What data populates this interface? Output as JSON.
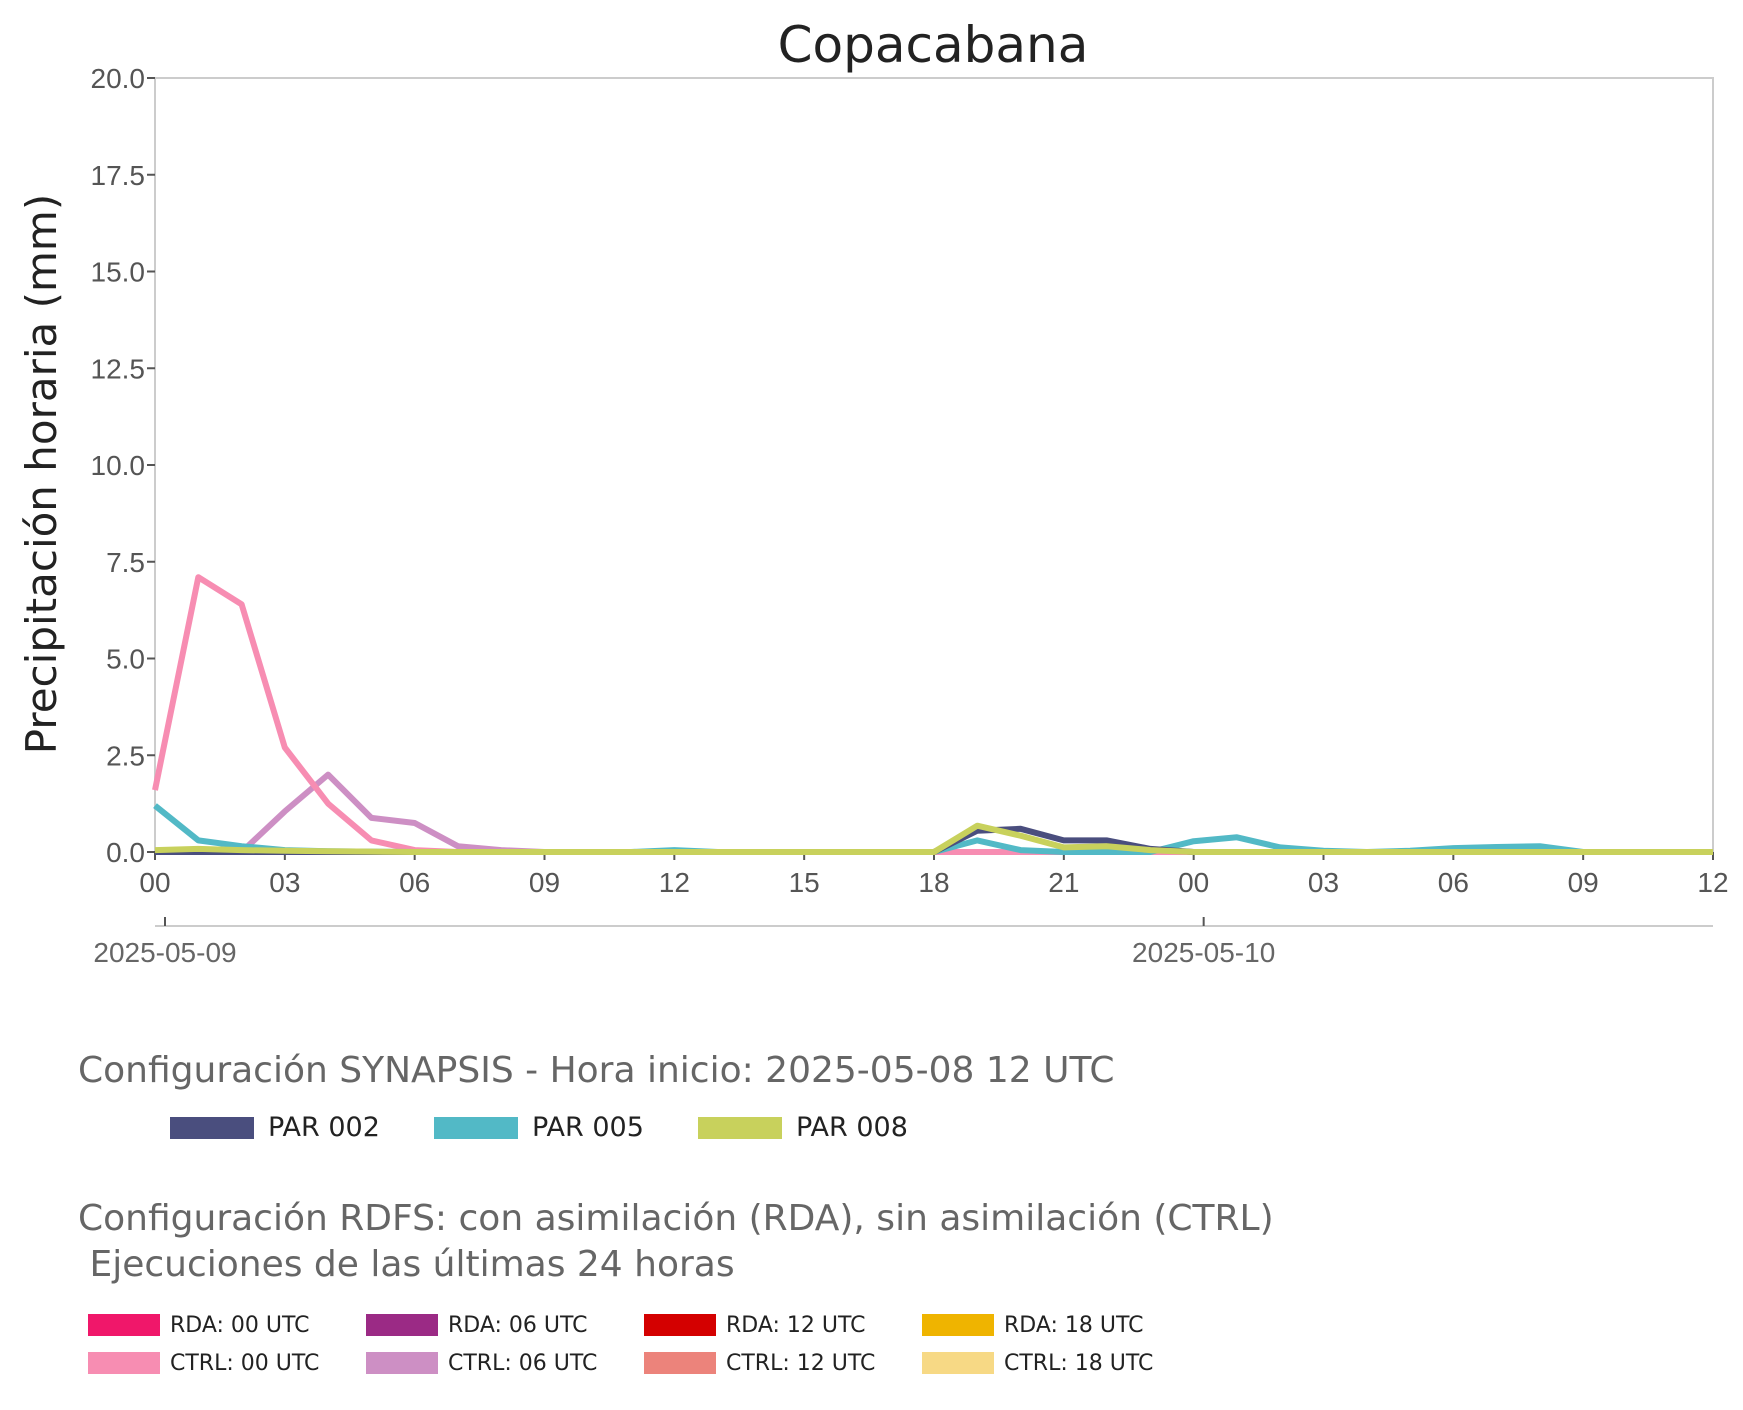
{
  "chart_data": {
    "type": "line",
    "title": "Copacabana",
    "ylabel": "Precipitación horaria (mm)",
    "xlabel": "",
    "ylim": [
      0,
      20
    ],
    "yticks": [
      "0.0",
      "2.5",
      "5.0",
      "7.5",
      "10.0",
      "12.5",
      "15.0",
      "17.5",
      "20.0"
    ],
    "xrange": [
      "2025-05-09 00 UTC",
      "2025-05-10 12 UTC"
    ],
    "xticks": [
      "00",
      "03",
      "06",
      "09",
      "12",
      "15",
      "18",
      "21",
      "00",
      "03",
      "06",
      "09",
      "12"
    ],
    "date_labels": [
      "2025-05-09",
      "2025-05-10"
    ],
    "grid": false,
    "x_hours": [
      0,
      1,
      2,
      3,
      4,
      5,
      6,
      7,
      8,
      9,
      10,
      11,
      12,
      13,
      14,
      15,
      16,
      17,
      18,
      19,
      20,
      21,
      22,
      23,
      24,
      25,
      26,
      27,
      28,
      29,
      30,
      31,
      32,
      33,
      34,
      35,
      36
    ],
    "series": [
      {
        "name": "PAR 002",
        "color": "#4a4e7e",
        "values": [
          0,
          0,
          0,
          0,
          0,
          0,
          0,
          0,
          0,
          0,
          0,
          0,
          0,
          0,
          0,
          0,
          0,
          0,
          0,
          0.55,
          0.6,
          0.3,
          0.3,
          0.08,
          0,
          0,
          0,
          0,
          0,
          0,
          0,
          0,
          0,
          0,
          0,
          0,
          0
        ]
      },
      {
        "name": "PAR 005",
        "color": "#52b9c6",
        "values": [
          1.2,
          0.3,
          0.15,
          0.05,
          0.02,
          0.01,
          0,
          0,
          0,
          0,
          0,
          0,
          0.05,
          0,
          0,
          0,
          0,
          0,
          0,
          0.3,
          0.05,
          0,
          0,
          0,
          0.28,
          0.38,
          0.12,
          0.03,
          0,
          0.03,
          0.1,
          0.13,
          0.15,
          0,
          0,
          0,
          0
        ]
      },
      {
        "name": "PAR 008",
        "color": "#c8d15c",
        "values": [
          0.05,
          0.08,
          0.05,
          0.03,
          0.02,
          0.01,
          0,
          0,
          0,
          0,
          0,
          0,
          0,
          0,
          0,
          0,
          0,
          0,
          0,
          0.68,
          0.42,
          0.12,
          0.15,
          0.05,
          0,
          0,
          0,
          0,
          0,
          0,
          0,
          0,
          0,
          0,
          0,
          0,
          0
        ]
      },
      {
        "name": "CTRL: 00 UTC",
        "color": "#f78db2",
        "values": [
          1.6,
          7.1,
          6.4,
          2.7,
          1.25,
          0.3,
          0.05,
          0,
          0,
          0,
          0,
          0,
          0,
          0,
          0,
          0,
          0,
          0,
          0,
          0,
          0,
          0,
          0,
          0,
          0,
          0,
          0,
          0,
          0,
          0,
          0,
          0,
          0,
          0,
          0,
          0,
          0
        ]
      },
      {
        "name": "CTRL: 06 UTC",
        "color": "#cd8fc4",
        "values": [
          null,
          null,
          0,
          1.05,
          2.0,
          0.88,
          0.75,
          0.15,
          0.05,
          0,
          0,
          0,
          0,
          0,
          0,
          0,
          0,
          0,
          0,
          0,
          0,
          0,
          0,
          0,
          0,
          0,
          0,
          0,
          0,
          0,
          0,
          0,
          0,
          0,
          0,
          0,
          0
        ]
      },
      {
        "name": "CTRL: 12 UTC",
        "color": "#ec837b",
        "values": [
          null,
          null,
          null,
          null,
          null,
          null,
          0,
          0,
          0,
          0,
          0,
          0,
          0,
          0,
          0,
          0,
          0,
          0,
          0,
          0,
          0,
          0,
          0,
          0,
          0,
          0,
          0,
          0,
          0,
          0,
          0,
          0,
          0,
          0,
          0,
          0,
          0
        ]
      }
    ]
  },
  "legend": {
    "synapsis_title": "Configuración SYNAPSIS - Hora inicio: 2025-05-08 12 UTC",
    "par_items": [
      {
        "label": "PAR 002",
        "color": "#4a4e7e"
      },
      {
        "label": "PAR 005",
        "color": "#52b9c6"
      },
      {
        "label": "PAR 008",
        "color": "#c8d15c"
      }
    ],
    "rdfs_title": "Configuración RDFS: con asimilación (RDA), sin asimilación (CTRL)\n Ejecuciones de las últimas 24 horas",
    "run_items": [
      {
        "label": "RDA: 00 UTC",
        "color": "#f0176a"
      },
      {
        "label": "RDA: 06 UTC",
        "color": "#9b2a85"
      },
      {
        "label": "RDA: 12 UTC",
        "color": "#d40000"
      },
      {
        "label": "RDA: 18 UTC",
        "color": "#efb400"
      },
      {
        "label": "CTRL: 00 UTC",
        "color": "#f78db2"
      },
      {
        "label": "CTRL: 06 UTC",
        "color": "#cd8fc4"
      },
      {
        "label": "CTRL: 12 UTC",
        "color": "#ec837b"
      },
      {
        "label": "CTRL: 18 UTC",
        "color": "#f7d985"
      }
    ]
  }
}
